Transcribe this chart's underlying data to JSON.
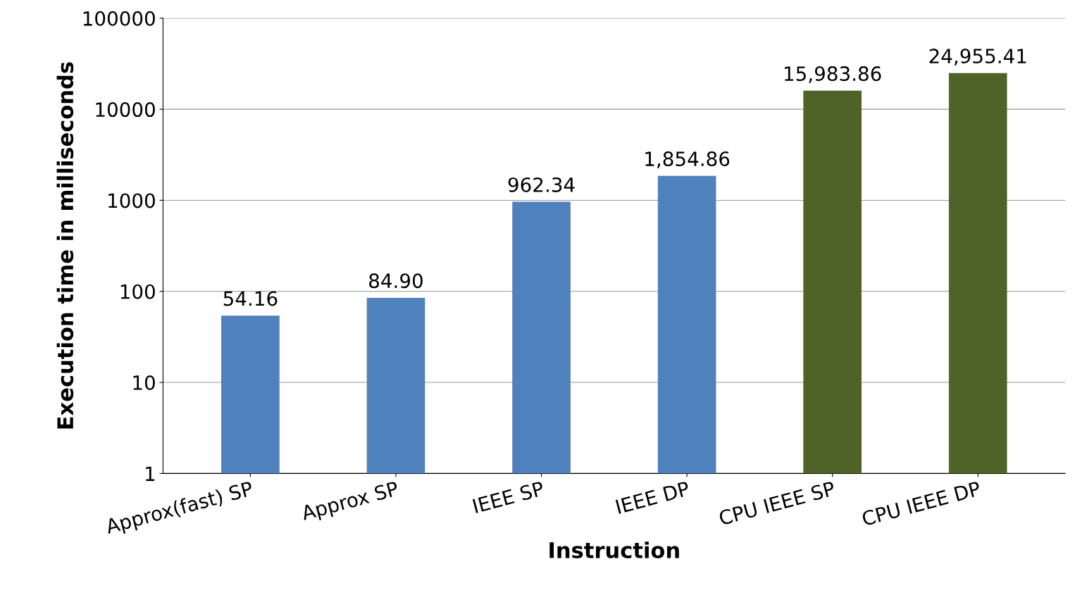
{
  "chart_data": {
    "type": "bar",
    "xlabel": "Instruction",
    "ylabel": "Execution time in milliseconds",
    "categories": [
      "Approx(fast) SP",
      "Approx SP",
      "IEEE SP",
      "IEEE DP",
      "CPU IEEE SP",
      "CPU IEEE DP"
    ],
    "values": [
      54.16,
      84.9,
      962.34,
      1854.86,
      15983.86,
      24955.41
    ],
    "colors": [
      "#4f81bd",
      "#4f81bd",
      "#4f81bd",
      "#4f81bd",
      "#4f6228",
      "#4f6228"
    ],
    "value_labels": [
      "54.16",
      "84.90",
      "962.34",
      "1,854.86",
      "15,983.86",
      "24,955.41"
    ],
    "log": "y",
    "ylim": [
      1,
      100000
    ],
    "yticks": [
      1,
      10,
      100,
      1000,
      10000,
      100000
    ],
    "grid": "y"
  }
}
